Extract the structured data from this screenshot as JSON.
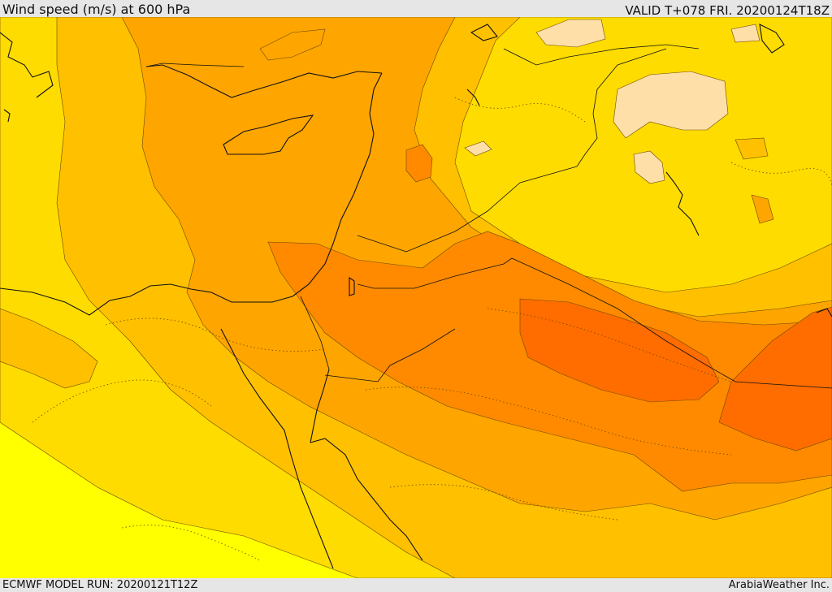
{
  "header": {
    "title": "Wind speed (m/s) at 600 hPa",
    "valid": "VALID T+078 FRI. 20200124T18Z"
  },
  "footer": {
    "model_run": "ECMWF MODEL RUN: 20200121T12Z",
    "credit": "ArabiaWeather Inc."
  },
  "map": {
    "variable": "wind speed",
    "units": "m/s",
    "level": "600 hPa",
    "colors": {
      "band_1": "#ffff00",
      "band_2": "#ffdc00",
      "band_3": "#ffc000",
      "band_4": "#ffa500",
      "band_5": "#ff8a00",
      "band_6": "#ff6c00",
      "calm": "#ffdfa8"
    }
  }
}
